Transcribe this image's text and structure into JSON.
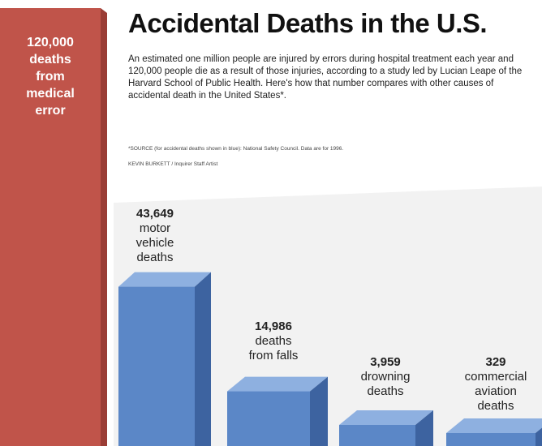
{
  "title": "Accidental Deaths in the U.S.",
  "intro": "An estimated one million people are injured by errors during hospital treatment each year and 120,000 people die as a result of those injuries, according to a study led by Lucian Leape of the Harvard School of Public Health. Here's how that number compares with other causes of accidental death in the United States*.",
  "source": "*SOURCE (for accidental deaths shown in blue): National Safety Council. Data are for 1996.",
  "credit": "KEVIN BURKETT / Inquirer Staff Artist",
  "colors": {
    "medical": "#c0544a",
    "medical_side": "#9a3d35",
    "medical_top": "#d8776c",
    "blue": "#5b87c7",
    "blue_side": "#3d63a0",
    "blue_top": "#8eb0e0"
  },
  "chart_data": {
    "type": "bar",
    "title": "Accidental Deaths in the U.S.",
    "categories": [
      "medical error",
      "motor vehicle deaths",
      "deaths from falls",
      "drowning deaths",
      "commercial aviation deaths"
    ],
    "values": [
      120000,
      43649,
      14986,
      3959,
      329
    ],
    "labels": [
      {
        "number": "120,000",
        "lines": [
          "deaths",
          "from",
          "medical",
          "error"
        ]
      },
      {
        "number": "43,649",
        "lines": [
          "motor",
          "vehicle",
          "deaths"
        ]
      },
      {
        "number": "14,986",
        "lines": [
          "deaths",
          "from falls"
        ]
      },
      {
        "number": "3,959",
        "lines": [
          "drowning",
          "deaths"
        ]
      },
      {
        "number": "329",
        "lines": [
          "commercial",
          "aviation",
          "deaths"
        ]
      }
    ],
    "grid": false,
    "legend": "none"
  }
}
